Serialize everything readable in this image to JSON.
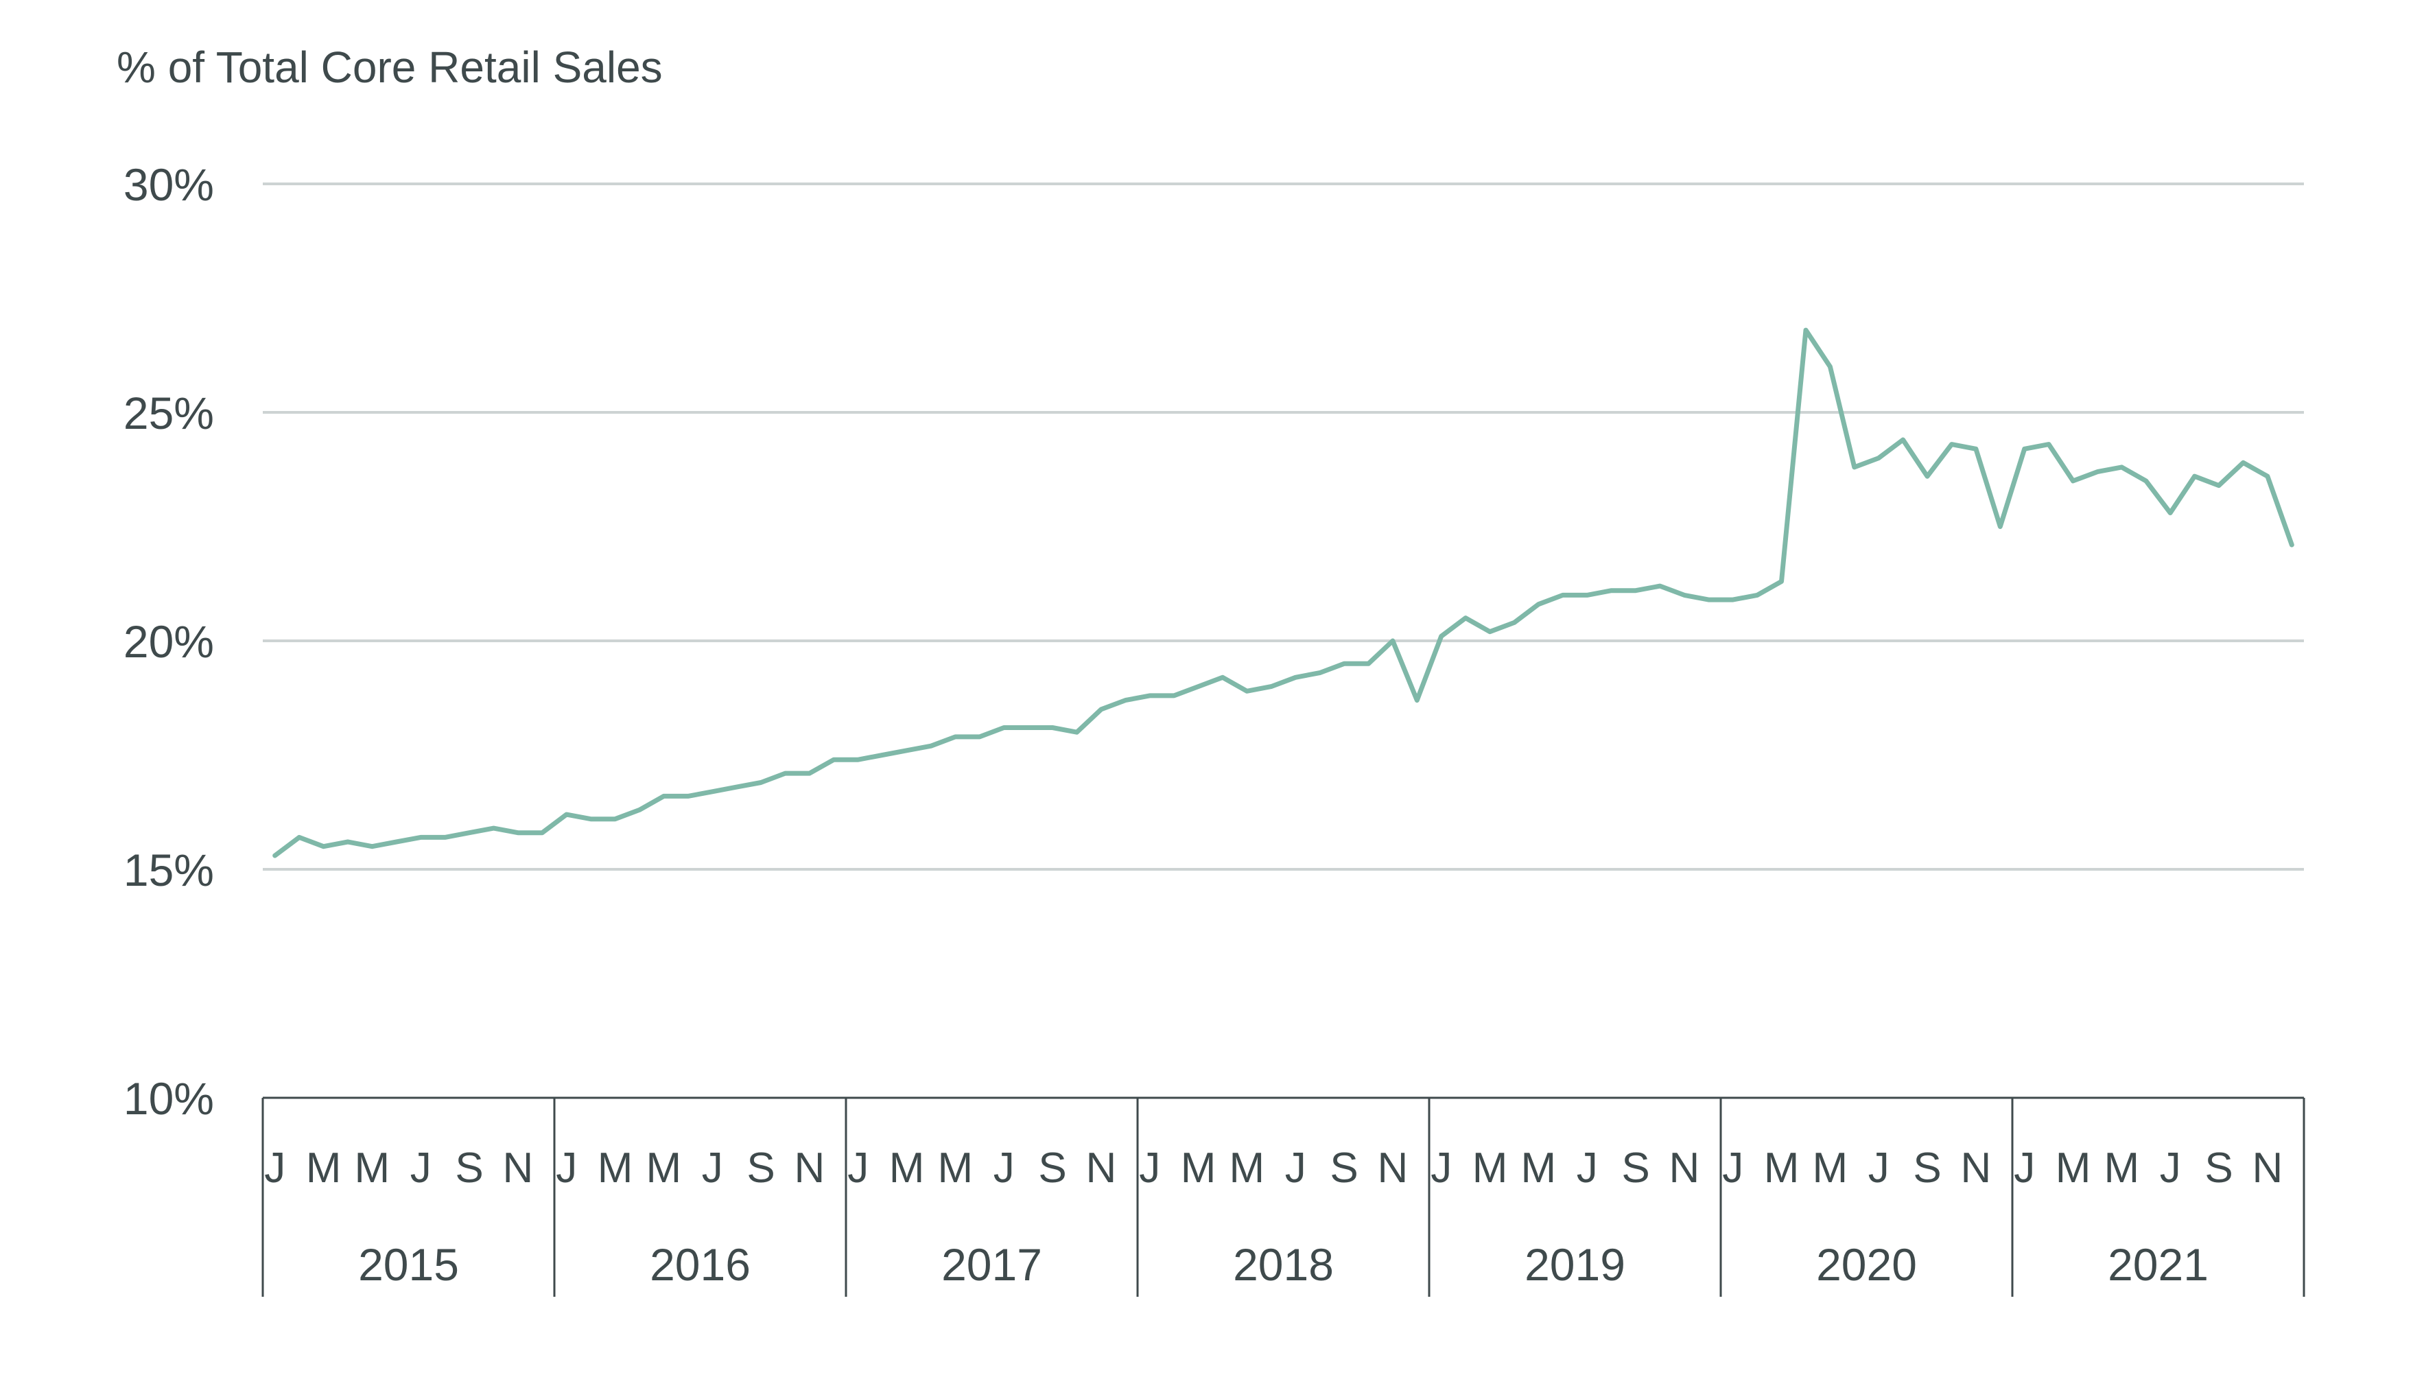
{
  "chart_data": {
    "type": "line",
    "title": "% of Total Core Retail Sales",
    "xlabel": "",
    "ylabel": "",
    "ylim": [
      10,
      30
    ],
    "yticks": [
      10,
      15,
      20,
      25,
      30
    ],
    "ytick_labels": [
      "10%",
      "15%",
      "20%",
      "25%",
      "30%"
    ],
    "grid": true,
    "legend": "none",
    "month_tick_labels": [
      "J",
      "M",
      "M",
      "J",
      "S",
      "N"
    ],
    "years": [
      "2015",
      "2016",
      "2017",
      "2018",
      "2019",
      "2020",
      "2021"
    ],
    "colors": {
      "line": "#7fb8a8",
      "grid": "#cdd3d3",
      "axis": "#3f4a4c",
      "text": "#3f4a4c"
    },
    "series": [
      {
        "x_start": "2015-01",
        "frequency": "monthly",
        "values": [
          15.3,
          15.7,
          15.5,
          15.6,
          15.5,
          15.6,
          15.7,
          15.7,
          15.8,
          15.9,
          15.8,
          15.8,
          16.2,
          16.1,
          16.1,
          16.3,
          16.6,
          16.6,
          16.7,
          16.8,
          16.9,
          17.1,
          17.1,
          17.4,
          17.4,
          17.5,
          17.6,
          17.7,
          17.9,
          17.9,
          18.1,
          18.1,
          18.1,
          18.0,
          18.5,
          18.7,
          18.8,
          18.8,
          19.0,
          19.2,
          18.9,
          19.0,
          19.2,
          19.3,
          19.5,
          19.5,
          20.0,
          18.7,
          20.1,
          20.5,
          20.2,
          20.4,
          20.8,
          21.0,
          21.0,
          21.1,
          21.1,
          21.2,
          21.0,
          20.9,
          20.9,
          21.0,
          21.3,
          26.8,
          26.0,
          23.8,
          24.0,
          24.4,
          23.6,
          24.3,
          24.2,
          22.5,
          24.2,
          24.3,
          23.5,
          23.7,
          23.8,
          23.5,
          22.8,
          23.6,
          23.4,
          23.9,
          23.6,
          22.1
        ]
      }
    ]
  }
}
